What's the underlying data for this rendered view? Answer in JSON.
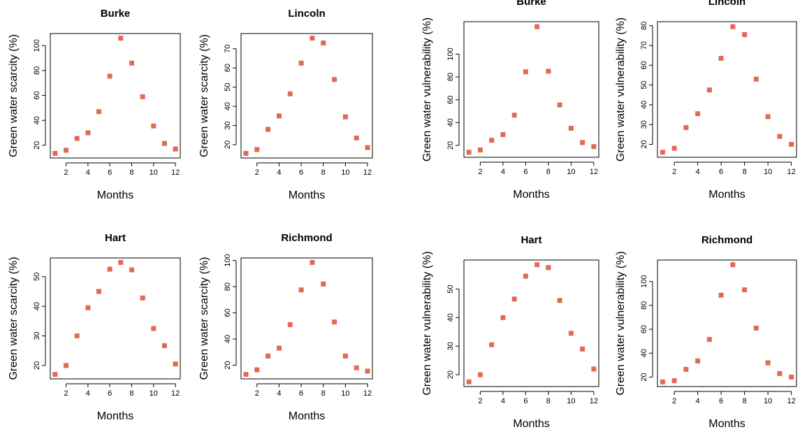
{
  "style": {
    "marker_color": "#e06a52",
    "axis_color": "#000000",
    "background": "#ffffff"
  },
  "chart_data": [
    {
      "type": "scatter",
      "title": "Burke",
      "xlabel": "Months",
      "ylabel": "Green water scarcity (%)",
      "x": [
        1,
        2,
        3,
        4,
        5,
        6,
        7,
        8,
        9,
        10,
        11,
        12
      ],
      "y": [
        13.5,
        16,
        25.5,
        30,
        47,
        75.5,
        106,
        86,
        59,
        35.5,
        21.5,
        17
      ],
      "xlim": [
        1,
        12
      ],
      "ylim": [
        13.5,
        106
      ],
      "xticks": [
        2,
        4,
        6,
        8,
        10,
        12
      ],
      "yticks": [
        20,
        40,
        60,
        80,
        100
      ],
      "grid": false
    },
    {
      "type": "scatter",
      "title": "Lincoln",
      "xlabel": "Months",
      "ylabel": "Green water scarcity (%)",
      "x": [
        1,
        2,
        3,
        4,
        5,
        6,
        7,
        8,
        9,
        10,
        11,
        12
      ],
      "y": [
        15.5,
        17.5,
        28,
        35,
        46.5,
        62.5,
        75.5,
        73,
        54,
        34.5,
        23.5,
        18.5
      ],
      "xlim": [
        1,
        12
      ],
      "ylim": [
        15.5,
        75.5
      ],
      "xticks": [
        2,
        4,
        6,
        8,
        10,
        12
      ],
      "yticks": [
        20,
        30,
        40,
        50,
        60,
        70
      ],
      "grid": false
    },
    {
      "type": "scatter",
      "title": "Hart",
      "xlabel": "Months",
      "ylabel": "Green water scarcity (%)",
      "x": [
        1,
        2,
        3,
        4,
        5,
        6,
        7,
        8,
        9,
        10,
        11,
        12
      ],
      "y": [
        17,
        20,
        30,
        39.5,
        45,
        52.5,
        54.8,
        52.3,
        42.8,
        32.5,
        26.7,
        20.5
      ],
      "xlim": [
        1,
        12
      ],
      "ylim": [
        17,
        54.8
      ],
      "xticks": [
        2,
        4,
        6,
        8,
        10,
        12
      ],
      "yticks": [
        20,
        30,
        40,
        50
      ],
      "grid": false
    },
    {
      "type": "scatter",
      "title": "Richmond",
      "xlabel": "Months",
      "ylabel": "Green water scarcity (%)",
      "x": [
        1,
        2,
        3,
        4,
        5,
        6,
        7,
        8,
        9,
        10,
        11,
        12
      ],
      "y": [
        13,
        16.5,
        27,
        33,
        51,
        77.5,
        98.5,
        82,
        53,
        27,
        18,
        15.5
      ],
      "xlim": [
        1,
        12
      ],
      "ylim": [
        13,
        98.5
      ],
      "xticks": [
        2,
        4,
        6,
        8,
        10,
        12
      ],
      "yticks": [
        20,
        40,
        60,
        80,
        100
      ],
      "grid": false
    },
    {
      "type": "scatter",
      "title": "Burke",
      "xlabel": "Months",
      "ylabel": "Green water vulnerability (%)",
      "x": [
        1,
        2,
        3,
        4,
        5,
        6,
        7,
        8,
        9,
        10,
        11,
        12
      ],
      "y": [
        14,
        16,
        24.5,
        29.5,
        46.5,
        84.5,
        124,
        85,
        55.5,
        35,
        22.5,
        19
      ],
      "xlim": [
        1,
        12
      ],
      "ylim": [
        14,
        124
      ],
      "xticks": [
        2,
        4,
        6,
        8,
        10,
        12
      ],
      "yticks": [
        20,
        40,
        60,
        80,
        100
      ],
      "grid": false
    },
    {
      "type": "scatter",
      "title": "Lincoln",
      "xlabel": "Months",
      "ylabel": "Green water vulnerability (%)",
      "x": [
        1,
        2,
        3,
        4,
        5,
        6,
        7,
        8,
        9,
        10,
        11,
        12
      ],
      "y": [
        16,
        18,
        28.5,
        35.5,
        47.5,
        63.5,
        79.5,
        75.5,
        53,
        34,
        24,
        20
      ],
      "xlim": [
        1,
        12
      ],
      "ylim": [
        16,
        79.5
      ],
      "xticks": [
        2,
        4,
        6,
        8,
        10,
        12
      ],
      "yticks": [
        20,
        30,
        40,
        50,
        60,
        70,
        80
      ],
      "grid": false
    },
    {
      "type": "scatter",
      "title": "Hart",
      "xlabel": "Months",
      "ylabel": "Green water vulnerability (%)",
      "x": [
        1,
        2,
        3,
        4,
        5,
        6,
        7,
        8,
        9,
        10,
        11,
        12
      ],
      "y": [
        17.5,
        20,
        30.5,
        40,
        46.5,
        54.5,
        58.5,
        57.5,
        46,
        34.5,
        29,
        22
      ],
      "xlim": [
        1,
        12
      ],
      "ylim": [
        17.5,
        58.5
      ],
      "xticks": [
        2,
        4,
        6,
        8,
        10,
        12
      ],
      "yticks": [
        20,
        30,
        40,
        50
      ],
      "grid": false
    },
    {
      "type": "scatter",
      "title": "Richmond",
      "xlabel": "Months",
      "ylabel": "Green water vulnerability (%)",
      "x": [
        1,
        2,
        3,
        4,
        5,
        6,
        7,
        8,
        9,
        10,
        11,
        12
      ],
      "y": [
        16,
        17,
        26.5,
        33.5,
        51.5,
        88.5,
        114,
        93,
        61,
        32,
        23,
        20
      ],
      "xlim": [
        1,
        12
      ],
      "ylim": [
        16,
        114
      ],
      "xticks": [
        2,
        4,
        6,
        8,
        10,
        12
      ],
      "yticks": [
        20,
        40,
        60,
        80,
        100
      ],
      "grid": false
    }
  ]
}
